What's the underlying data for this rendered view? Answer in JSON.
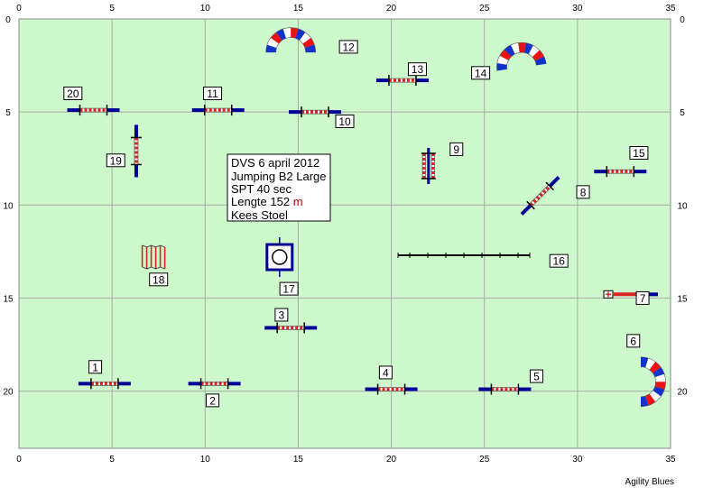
{
  "course_info": {
    "lines": [
      "DVS 6 april 2012",
      "Jumping B2 Large",
      "SPT 40 sec",
      "Lengte 152 ",
      "Kees Stoel"
    ],
    "length_unit": "m",
    "unit_color": "#cc0000"
  },
  "credit": "Agility Blues",
  "axes": {
    "x_range": [
      0,
      35
    ],
    "y_range": [
      0,
      23
    ],
    "x_ticks": [
      0,
      5,
      10,
      15,
      20,
      25,
      30,
      35
    ],
    "y_ticks": [
      0,
      5,
      10,
      15,
      20
    ]
  },
  "colors": {
    "field": "#ccf8cc",
    "grid": "#aaaaaa",
    "pole_red": "#dd2222",
    "wing_blue": "#000099",
    "tunnel_red": "#ee1111",
    "tunnel_blue": "#1133cc"
  },
  "obstacles": [
    {
      "number": "1",
      "type": "jump",
      "x": 4.6,
      "y": 19.6,
      "angle": 0
    },
    {
      "number": "2",
      "type": "jump",
      "x": 10.5,
      "y": 19.6,
      "angle": 0
    },
    {
      "number": "3",
      "type": "jump",
      "x": 14.6,
      "y": 16.6,
      "angle": 0
    },
    {
      "number": "4",
      "type": "jump",
      "x": 20.0,
      "y": 19.9,
      "angle": 0
    },
    {
      "number": "5",
      "type": "jump",
      "x": 26.1,
      "y": 19.9,
      "angle": 0
    },
    {
      "number": "6",
      "type": "tunnel",
      "x": 33.4,
      "y": 19.5,
      "angle": 90
    },
    {
      "number": "7",
      "type": "jump_single",
      "x": 31.8,
      "y": 14.8,
      "angle": 0
    },
    {
      "number": "8",
      "type": "jump",
      "x": 28.0,
      "y": 9.5,
      "angle": -45
    },
    {
      "number": "9",
      "type": "double",
      "x": 22.0,
      "y": 7.9,
      "angle": 90
    },
    {
      "number": "10",
      "type": "jump",
      "x": 15.9,
      "y": 5.0,
      "angle": 0
    },
    {
      "number": "11",
      "type": "jump",
      "x": 10.7,
      "y": 4.9,
      "angle": 0
    },
    {
      "number": "12",
      "type": "tunnel",
      "x": 14.6,
      "y": 1.8,
      "angle": 0
    },
    {
      "number": "13",
      "type": "jump",
      "x": 20.6,
      "y": 3.3,
      "angle": 0
    },
    {
      "number": "14",
      "type": "tunnel",
      "x": 27.0,
      "y": 2.6,
      "angle": -8
    },
    {
      "number": "15",
      "type": "jump",
      "x": 32.3,
      "y": 8.2,
      "angle": 0
    },
    {
      "number": "16",
      "type": "walk",
      "x": 23.9,
      "y": 12.7,
      "angle": 0
    },
    {
      "number": "17",
      "type": "tyre",
      "x": 14.0,
      "y": 12.8,
      "angle": 0
    },
    {
      "number": "18",
      "type": "weave",
      "x": 7.3,
      "y": 12.8,
      "angle": 0
    },
    {
      "number": "19",
      "type": "jump",
      "x": 6.3,
      "y": 7.1,
      "angle": 90
    },
    {
      "number": "20",
      "type": "jump",
      "x": 4.0,
      "y": 4.9,
      "angle": 0
    }
  ],
  "number_labels": [
    {
      "number": "1",
      "x": 4.1,
      "y": 18.7
    },
    {
      "number": "2",
      "x": 10.4,
      "y": 20.5
    },
    {
      "number": "3",
      "x": 14.1,
      "y": 15.9
    },
    {
      "number": "4",
      "x": 19.7,
      "y": 19.0
    },
    {
      "number": "5",
      "x": 27.8,
      "y": 19.2
    },
    {
      "number": "6",
      "x": 33.0,
      "y": 17.3
    },
    {
      "number": "7",
      "x": 33.5,
      "y": 15.0
    },
    {
      "number": "8",
      "x": 30.3,
      "y": 9.3
    },
    {
      "number": "9",
      "x": 23.5,
      "y": 7.0
    },
    {
      "number": "10",
      "x": 17.5,
      "y": 5.5
    },
    {
      "number": "11",
      "x": 10.4,
      "y": 4.0
    },
    {
      "number": "12",
      "x": 17.7,
      "y": 1.5
    },
    {
      "number": "13",
      "x": 21.4,
      "y": 2.7
    },
    {
      "number": "14",
      "x": 24.8,
      "y": 2.9
    },
    {
      "number": "15",
      "x": 33.3,
      "y": 7.2
    },
    {
      "number": "16",
      "x": 29.0,
      "y": 13.0
    },
    {
      "number": "17",
      "x": 14.5,
      "y": 14.5
    },
    {
      "number": "18",
      "x": 7.5,
      "y": 14.0
    },
    {
      "number": "19",
      "x": 5.2,
      "y": 7.6
    },
    {
      "number": "20",
      "x": 2.9,
      "y": 4.0
    }
  ]
}
